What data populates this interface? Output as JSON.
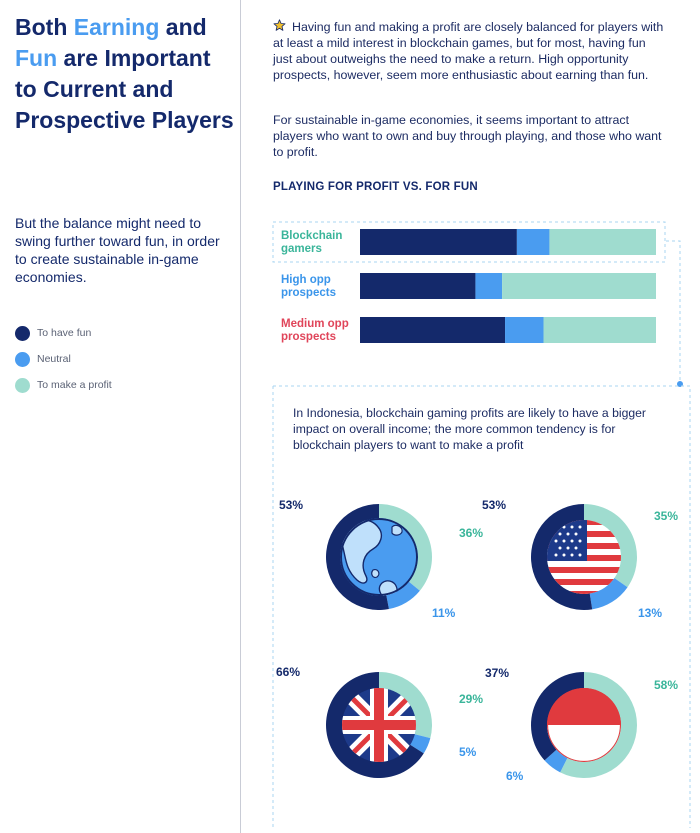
{
  "left_panel": {
    "title_parts": [
      "Both ",
      "Earning",
      " and ",
      "Fun",
      " are Important to Current and Prospective Players"
    ],
    "subtitle": "But the balance might need to swing further toward fun, in order to create sustainable in-game economies.",
    "legend": [
      {
        "label": "To have fun",
        "color": "#14296b"
      },
      {
        "label": "Neutral",
        "color": "#4a9cf0"
      },
      {
        "label": "To make a profit",
        "color": "#9fdccf"
      }
    ]
  },
  "intro_text": "Having fun and making a profit are closely balanced for players with at least a mild interest in blockchain games, but for most, having fun just about outweighs the need to make a return. High opportunity prospects, however, seem more enthusiastic about earning than fun.",
  "intro_text_2": "For sustainable in-game economies, it seems important to attract players who want to own and buy through playing, and those who want to profit.",
  "section_title": "PLAYING FOR PROFIT VS. FOR FUN",
  "box_caption": "In Indonesia, blockchain gaming profits are likely to have a bigger impact on overall income; the more common tendency is for blockchain players to want to make a profit",
  "icons": {
    "intro": "star-icon",
    "globe": "globe-icon",
    "us_flag": "us-flag-icon",
    "uk_flag": "uk-flag-icon",
    "id_flag": "indonesia-flag-icon"
  },
  "chart_data": [
    {
      "type": "bar",
      "orientation": "horizontal",
      "stacked": true,
      "normalized": true,
      "title": "PLAYING FOR PROFIT VS. FOR FUN",
      "categories": [
        {
          "label": "Blockchain gamers",
          "color": "#3ab59a"
        },
        {
          "label": "High opp prospects",
          "color": "#3a95ea"
        },
        {
          "label": "Medium opp prospects",
          "color": "#e0455a"
        }
      ],
      "series": [
        {
          "name": "To have fun",
          "color": "#14296b",
          "values": [
            53,
            39,
            49
          ]
        },
        {
          "name": "Neutral",
          "color": "#4a9cf0",
          "values": [
            11,
            9,
            13
          ]
        },
        {
          "name": "To make a profit",
          "color": "#9fdccf",
          "values": [
            36,
            52,
            38
          ]
        }
      ]
    },
    {
      "type": "pie",
      "variant": "donut",
      "region": "global",
      "icon": "globe-icon",
      "series": [
        {
          "name": "To have fun",
          "value": 53,
          "label": "53%",
          "color": "#14296b"
        },
        {
          "name": "Neutral",
          "value": 11,
          "label": "11%",
          "color": "#4a9cf0"
        },
        {
          "name": "To make a profit",
          "value": 36,
          "label": "36%",
          "color": "#9fdccf"
        }
      ]
    },
    {
      "type": "pie",
      "variant": "donut",
      "region": "United States",
      "icon": "us-flag-icon",
      "series": [
        {
          "name": "To have fun",
          "value": 53,
          "label": "53%",
          "color": "#14296b"
        },
        {
          "name": "Neutral",
          "value": 13,
          "label": "13%",
          "color": "#4a9cf0"
        },
        {
          "name": "To make a profit",
          "value": 35,
          "label": "35%",
          "color": "#9fdccf"
        }
      ]
    },
    {
      "type": "pie",
      "variant": "donut",
      "region": "United Kingdom",
      "icon": "uk-flag-icon",
      "series": [
        {
          "name": "To have fun",
          "value": 66,
          "label": "66%",
          "color": "#14296b"
        },
        {
          "name": "Neutral",
          "value": 5,
          "label": "5%",
          "color": "#4a9cf0"
        },
        {
          "name": "To make a profit",
          "value": 29,
          "label": "29%",
          "color": "#9fdccf"
        }
      ]
    },
    {
      "type": "pie",
      "variant": "donut",
      "region": "Indonesia",
      "icon": "indonesia-flag-icon",
      "series": [
        {
          "name": "To have fun",
          "value": 37,
          "label": "37%",
          "color": "#14296b"
        },
        {
          "name": "Neutral",
          "value": 6,
          "label": "6%",
          "color": "#4a9cf0"
        },
        {
          "name": "To make a profit",
          "value": 58,
          "label": "58%",
          "color": "#9fdccf"
        }
      ]
    }
  ]
}
